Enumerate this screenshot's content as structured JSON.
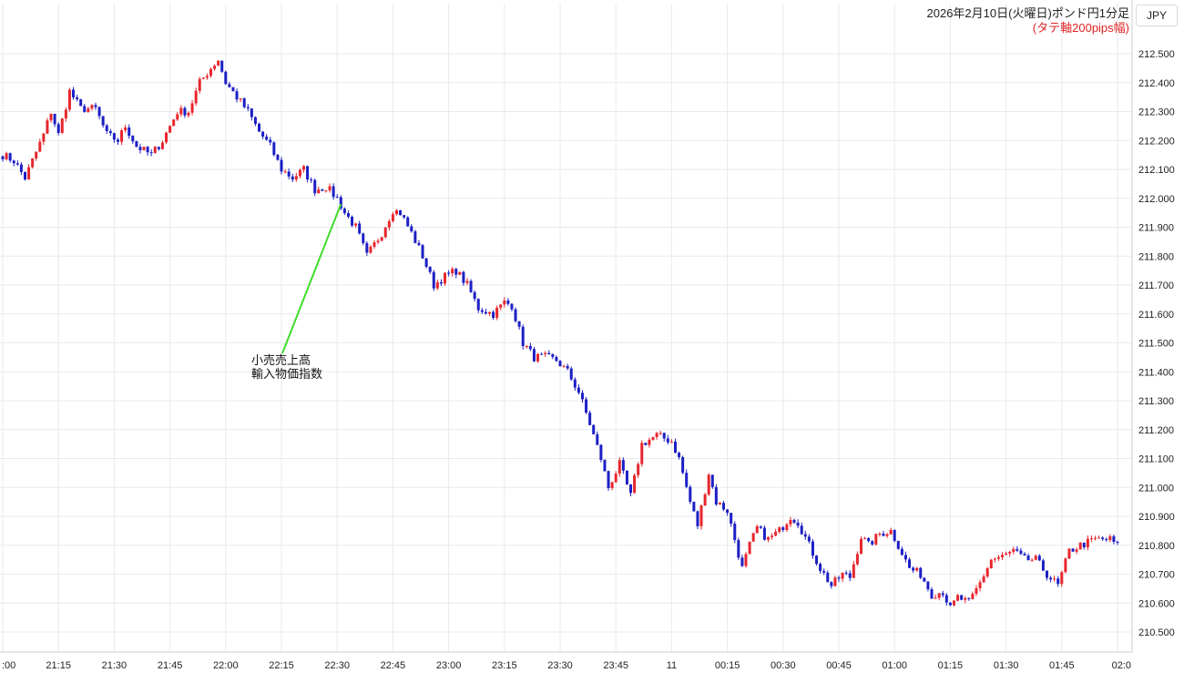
{
  "title": "2026年2月10日(火曜日)ポンド円1分足",
  "subtitle": "(タテ軸200pips幅)",
  "currency_button": "JPY",
  "annotation": [
    "小売売上高",
    "輸入物価指数"
  ],
  "colors": {
    "up": "#e8262d",
    "down": "#1c1fc4",
    "grid": "#e6eaef",
    "annotation_line": "#3fdc2a"
  },
  "chart_data": {
    "type": "candlestick",
    "timeframe": "1m",
    "ylim": [
      210.45,
      212.55
    ],
    "y_ticks": [
      "212.500",
      "212.400",
      "212.300",
      "212.200",
      "212.100",
      "212.000",
      "211.900",
      "211.800",
      "211.700",
      "211.600",
      "211.500",
      "211.400",
      "211.300",
      "211.200",
      "211.100",
      "211.000",
      "210.900",
      "210.800",
      "210.700",
      "210.600",
      "210.500"
    ],
    "x_ticks": [
      ":00",
      "21:15",
      "21:30",
      "21:45",
      "22:00",
      "22:15",
      "22:30",
      "22:45",
      "23:00",
      "23:15",
      "23:30",
      "23:45",
      "11",
      "00:15",
      "00:30",
      "00:45",
      "01:00",
      "01:15",
      "01:30",
      "01:45",
      "02:0"
    ],
    "price_path": [
      [
        "21:00",
        212.15
      ],
      [
        "21:03",
        212.13
      ],
      [
        "21:06",
        212.07
      ],
      [
        "21:08",
        212.13
      ],
      [
        "21:11",
        212.22
      ],
      [
        "21:13",
        212.3
      ],
      [
        "21:15",
        212.22
      ],
      [
        "21:18",
        212.37
      ],
      [
        "21:21",
        212.31
      ],
      [
        "21:25",
        212.31
      ],
      [
        "21:28",
        212.22
      ],
      [
        "21:31",
        212.2
      ],
      [
        "21:33",
        212.25
      ],
      [
        "21:36",
        212.18
      ],
      [
        "21:40",
        212.15
      ],
      [
        "21:43",
        212.2
      ],
      [
        "21:47",
        212.3
      ],
      [
        "21:50",
        212.3
      ],
      [
        "21:53",
        212.4
      ],
      [
        "21:56",
        212.45
      ],
      [
        "21:58",
        212.48
      ],
      [
        "22:00",
        212.4
      ],
      [
        "22:03",
        212.35
      ],
      [
        "22:06",
        212.3
      ],
      [
        "22:09",
        212.23
      ],
      [
        "22:12",
        212.18
      ],
      [
        "22:15",
        212.1
      ],
      [
        "22:18",
        212.07
      ],
      [
        "22:21",
        212.1
      ],
      [
        "22:24",
        212.03
      ],
      [
        "22:27",
        212.04
      ],
      [
        "22:30",
        212.0
      ],
      [
        "22:32",
        211.95
      ],
      [
        "22:35",
        211.9
      ],
      [
        "22:38",
        211.8
      ],
      [
        "22:42",
        211.88
      ],
      [
        "22:45",
        211.96
      ],
      [
        "22:47",
        211.95
      ],
      [
        "22:50",
        211.88
      ],
      [
        "22:53",
        211.8
      ],
      [
        "22:56",
        211.7
      ],
      [
        "22:59",
        211.73
      ],
      [
        "23:02",
        211.75
      ],
      [
        "23:05",
        211.7
      ],
      [
        "23:08",
        211.62
      ],
      [
        "23:12",
        211.6
      ],
      [
        "23:15",
        211.64
      ],
      [
        "23:17",
        211.63
      ],
      [
        "23:20",
        211.5
      ],
      [
        "23:23",
        211.45
      ],
      [
        "23:26",
        211.45
      ],
      [
        "23:29",
        211.44
      ],
      [
        "23:32",
        211.4
      ],
      [
        "23:35",
        211.33
      ],
      [
        "23:38",
        211.22
      ],
      [
        "23:41",
        211.1
      ],
      [
        "23:43",
        211.0
      ],
      [
        "23:46",
        211.08
      ],
      [
        "23:49",
        210.97
      ],
      [
        "23:52",
        211.15
      ],
      [
        "23:56",
        211.18
      ],
      [
        "00:00",
        211.16
      ],
      [
        "00:02",
        211.1
      ],
      [
        "00:05",
        210.95
      ],
      [
        "00:07",
        210.87
      ],
      [
        "00:10",
        211.05
      ],
      [
        "00:12",
        210.95
      ],
      [
        "00:15",
        210.92
      ],
      [
        "00:17",
        210.82
      ],
      [
        "00:19",
        210.72
      ],
      [
        "00:21",
        210.8
      ],
      [
        "00:23",
        210.86
      ],
      [
        "00:26",
        210.82
      ],
      [
        "00:29",
        210.85
      ],
      [
        "00:32",
        210.9
      ],
      [
        "00:34",
        210.88
      ],
      [
        "00:37",
        210.8
      ],
      [
        "00:40",
        210.72
      ],
      [
        "00:43",
        210.66
      ],
      [
        "00:46",
        210.7
      ],
      [
        "00:48",
        210.69
      ],
      [
        "00:51",
        210.83
      ],
      [
        "00:53",
        210.8
      ],
      [
        "00:56",
        210.84
      ],
      [
        "00:59",
        210.85
      ],
      [
        "01:01",
        210.8
      ],
      [
        "01:04",
        210.72
      ],
      [
        "01:07",
        210.7
      ],
      [
        "01:10",
        210.63
      ],
      [
        "01:13",
        210.64
      ],
      [
        "01:15",
        210.58
      ],
      [
        "01:17",
        210.62
      ],
      [
        "01:20",
        210.6
      ],
      [
        "01:23",
        210.67
      ],
      [
        "01:26",
        210.75
      ],
      [
        "01:29",
        210.76
      ],
      [
        "01:32",
        210.78
      ],
      [
        "01:35",
        210.75
      ],
      [
        "01:38",
        210.75
      ],
      [
        "01:41",
        210.7
      ],
      [
        "01:44",
        210.66
      ],
      [
        "01:47",
        210.78
      ],
      [
        "01:50",
        210.8
      ],
      [
        "01:54",
        210.82
      ],
      [
        "01:58",
        210.82
      ],
      [
        "02:00",
        210.8
      ]
    ]
  }
}
